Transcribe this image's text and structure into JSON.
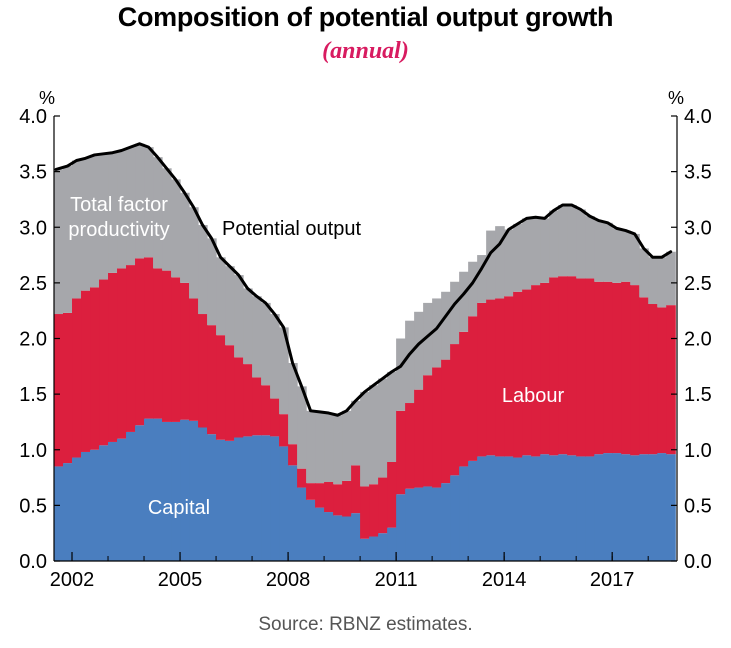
{
  "chart_data": {
    "type": "area",
    "title": "Composition of potential output growth",
    "subtitle": "(annual)",
    "source": "Source: RBNZ estimates.",
    "ylabel_left": "%",
    "ylabel_right": "%",
    "ylim": [
      0,
      4
    ],
    "xlim": [
      2001.5,
      2018.8
    ],
    "yticks": [
      "0.0",
      "0.5",
      "1.0",
      "1.5",
      "2.0",
      "2.5",
      "3.0",
      "3.5",
      "4.0"
    ],
    "xticks": [
      "2002",
      "2005",
      "2008",
      "2011",
      "2014",
      "2017"
    ],
    "stacked": true,
    "grid": false,
    "legend": "none",
    "annotations": [
      {
        "text": "Total factor",
        "series": "tfp"
      },
      {
        "text": "productivity",
        "series": "tfp"
      },
      {
        "text": "Potential output",
        "series": "total"
      },
      {
        "text": "Labour",
        "series": "labour"
      },
      {
        "text": "Capital",
        "series": "capital"
      }
    ],
    "x": [
      2001.5,
      2001.75,
      2002.0,
      2002.25,
      2002.5,
      2002.75,
      2003.0,
      2003.25,
      2003.5,
      2003.75,
      2004.0,
      2004.25,
      2004.5,
      2004.75,
      2005.0,
      2005.25,
      2005.5,
      2005.75,
      2006.0,
      2006.25,
      2006.5,
      2006.75,
      2007.0,
      2007.25,
      2007.5,
      2007.75,
      2008.0,
      2008.25,
      2008.5,
      2008.75,
      2009.0,
      2009.25,
      2009.5,
      2009.75,
      2010.0,
      2010.25,
      2010.5,
      2010.75,
      2011.0,
      2011.25,
      2011.5,
      2011.75,
      2012.0,
      2012.25,
      2012.5,
      2012.75,
      2013.0,
      2013.25,
      2013.5,
      2013.75,
      2014.0,
      2014.25,
      2014.5,
      2014.75,
      2015.0,
      2015.25,
      2015.5,
      2015.75,
      2016.0,
      2016.25,
      2016.5,
      2016.75,
      2017.0,
      2017.25,
      2017.5,
      2017.75,
      2018.0,
      2018.25,
      2018.5
    ],
    "series": [
      {
        "id": "capital",
        "color": "#4a7ebf",
        "values": [
          0.85,
          0.88,
          0.93,
          0.98,
          1.0,
          1.04,
          1.07,
          1.1,
          1.16,
          1.22,
          1.28,
          1.28,
          1.25,
          1.25,
          1.27,
          1.26,
          1.2,
          1.14,
          1.09,
          1.08,
          1.11,
          1.12,
          1.13,
          1.13,
          1.12,
          1.03,
          0.86,
          0.66,
          0.55,
          0.48,
          0.44,
          0.41,
          0.4,
          0.43,
          0.2,
          0.22,
          0.25,
          0.3,
          0.6,
          0.65,
          0.66,
          0.67,
          0.66,
          0.7,
          0.77,
          0.85,
          0.9,
          0.94,
          0.95,
          0.94,
          0.94,
          0.93,
          0.95,
          0.94,
          0.96,
          0.95,
          0.96,
          0.95,
          0.94,
          0.94,
          0.96,
          0.97,
          0.97,
          0.96,
          0.95,
          0.96,
          0.96,
          0.97,
          0.96
        ]
      },
      {
        "id": "labour",
        "color": "#dc1f3e",
        "values": [
          1.37,
          1.35,
          1.43,
          1.45,
          1.46,
          1.49,
          1.52,
          1.53,
          1.5,
          1.5,
          1.45,
          1.35,
          1.36,
          1.3,
          1.23,
          1.1,
          1.02,
          0.98,
          0.94,
          0.86,
          0.72,
          0.65,
          0.52,
          0.45,
          0.34,
          0.29,
          0.19,
          0.17,
          0.15,
          0.22,
          0.27,
          0.28,
          0.32,
          0.43,
          0.47,
          0.47,
          0.5,
          0.59,
          0.75,
          0.77,
          0.88,
          1.0,
          1.08,
          1.11,
          1.18,
          1.21,
          1.3,
          1.38,
          1.4,
          1.42,
          1.44,
          1.49,
          1.49,
          1.54,
          1.54,
          1.6,
          1.6,
          1.61,
          1.6,
          1.6,
          1.55,
          1.54,
          1.53,
          1.55,
          1.53,
          1.41,
          1.35,
          1.31,
          1.34
        ]
      },
      {
        "id": "tfp",
        "color": "#a6a7ab",
        "values": [
          1.3,
          1.32,
          1.24,
          1.19,
          1.19,
          1.13,
          1.08,
          1.06,
          1.06,
          1.03,
          0.99,
          1.0,
          0.92,
          0.88,
          0.81,
          0.82,
          0.8,
          0.78,
          0.7,
          0.71,
          0.74,
          0.68,
          0.73,
          0.74,
          0.76,
          0.78,
          0.73,
          0.74,
          0.65,
          0.64,
          0.62,
          0.62,
          0.63,
          0.58,
          0.85,
          0.89,
          0.89,
          0.81,
          0.65,
          0.74,
          0.7,
          0.65,
          0.62,
          0.61,
          0.56,
          0.54,
          0.49,
          0.43,
          0.62,
          0.65,
          0.6,
          0.61,
          0.64,
          0.61,
          0.58,
          0.6,
          0.64,
          0.64,
          0.62,
          0.56,
          0.55,
          0.53,
          0.49,
          0.46,
          0.46,
          0.44,
          0.42,
          0.45,
          0.48
        ]
      }
    ],
    "total": {
      "id": "total",
      "color": "#000000",
      "values": [
        3.52,
        3.55,
        3.6,
        3.62,
        3.65,
        3.66,
        3.67,
        3.69,
        3.72,
        3.75,
        3.72,
        3.63,
        3.53,
        3.43,
        3.31,
        3.18,
        3.02,
        2.9,
        2.73,
        2.65,
        2.57,
        2.45,
        2.38,
        2.32,
        2.22,
        2.1,
        1.78,
        1.57,
        1.35,
        1.34,
        1.33,
        1.31,
        1.35,
        1.44,
        1.52,
        1.58,
        1.64,
        1.7,
        1.75,
        1.86,
        1.95,
        2.02,
        2.09,
        2.2,
        2.31,
        2.4,
        2.5,
        2.63,
        2.77,
        2.85,
        2.98,
        3.03,
        3.08,
        3.09,
        3.08,
        3.15,
        3.2,
        3.2,
        3.16,
        3.1,
        3.06,
        3.04,
        2.99,
        2.97,
        2.94,
        2.81,
        2.73,
        2.73,
        2.78
      ]
    }
  }
}
